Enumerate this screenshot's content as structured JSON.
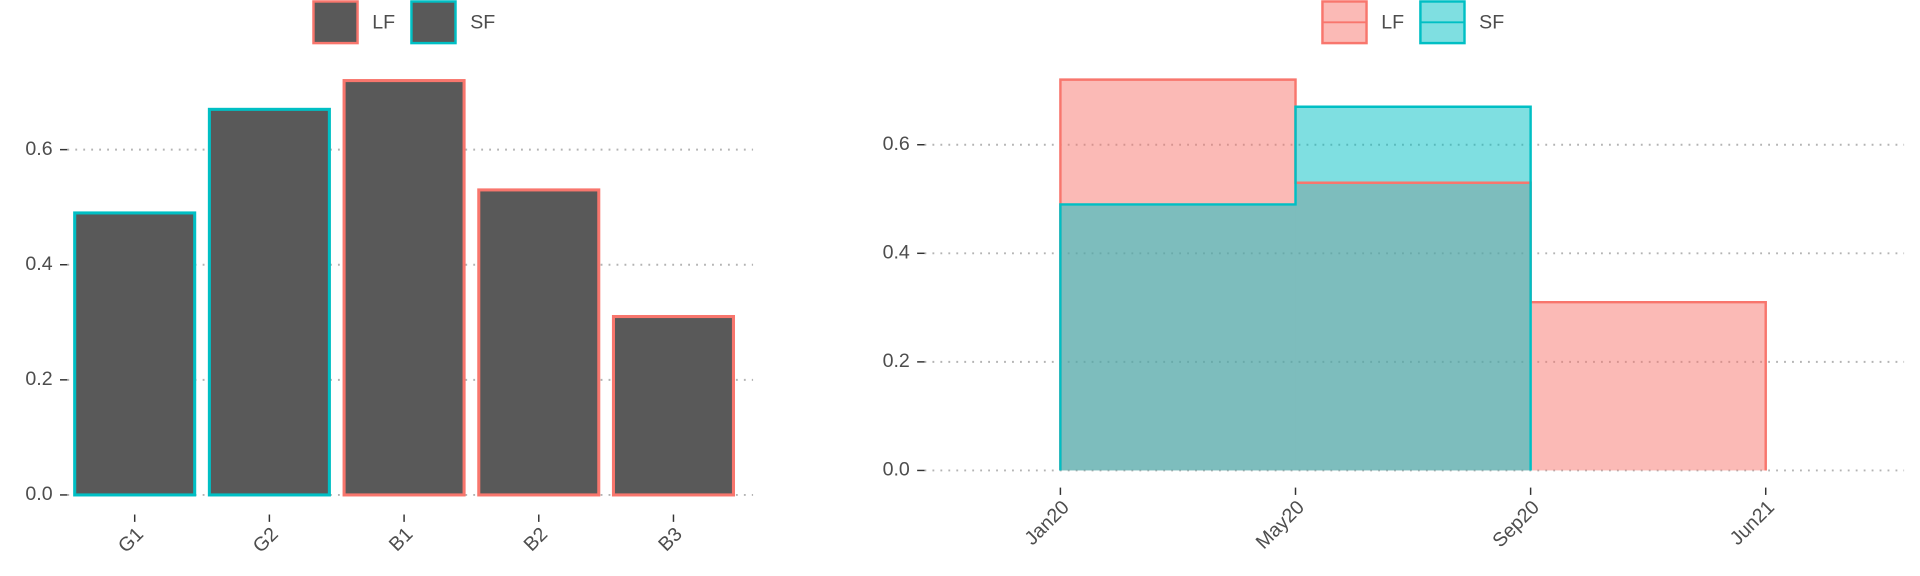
{
  "chart_data": [
    {
      "type": "bar",
      "categories": [
        "G1",
        "G2",
        "B1",
        "B2",
        "B3"
      ],
      "values": [
        0.49,
        0.67,
        0.72,
        0.53,
        0.31
      ],
      "color": "#595959",
      "outline_colors": [
        "#00bfc4",
        "#00bfc4",
        "#f8766d",
        "#f8766d",
        "#f8766d"
      ],
      "legend": [
        {
          "name": "LF",
          "color": "#f8766d"
        },
        {
          "name": "SF",
          "color": "#00bfc4"
        }
      ],
      "ylim": [
        0,
        0.75
      ],
      "yticks": [
        {
          "value": 0,
          "label": "0.0"
        },
        0.2,
        0.4,
        0.6
      ],
      "grid": true
    },
    {
      "type": "step_area",
      "x_edges": [
        "Jan20",
        "May20",
        "Sep20",
        "Jun21"
      ],
      "series": [
        {
          "name": "LF",
          "color": "#f8766d",
          "values": [
            0.72,
            0.53,
            0.31
          ]
        },
        {
          "name": "SF",
          "color": "#00bfc4",
          "values": [
            0.49,
            0.67,
            null
          ]
        }
      ],
      "ylim": [
        0,
        0.75
      ],
      "yticks": [
        {
          "value": 0,
          "label": "0.0"
        },
        0.2,
        0.4,
        0.6
      ],
      "grid": true
    }
  ]
}
